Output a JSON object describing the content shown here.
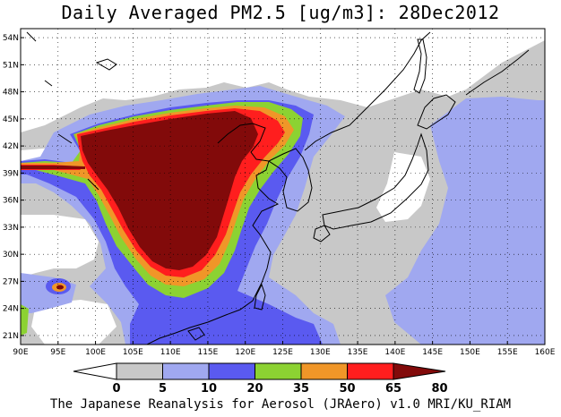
{
  "title": "Daily Averaged PM2.5 [ug/m3]: 28Dec2012",
  "credit": "The Japanese Reanalysis for Aerosol (JRAero) v1.0 MRI/KU_RIAM",
  "map": {
    "lon_range": [
      90,
      160
    ],
    "lat_range": [
      20,
      55
    ],
    "lon_ticks": [
      "90E",
      "95E",
      "100E",
      "105E",
      "110E",
      "115E",
      "120E",
      "125E",
      "130E",
      "135E",
      "140E",
      "145E",
      "150E",
      "155E",
      "160E"
    ],
    "lat_ticks": [
      "21N",
      "24N",
      "27N",
      "30N",
      "33N",
      "36N",
      "39N",
      "42N",
      "45N",
      "48N",
      "51N",
      "54N"
    ],
    "grid": true,
    "colors": {
      "0-5": "#ffffff",
      "5-10": "#c8c8c8",
      "10-20": "#a0a8f0",
      "20-35": "#5a5af0",
      "35-50": "#8cd232",
      "50-65": "#f09628",
      "65-80": "#ff1e1e",
      "80+": "#820a0a"
    }
  },
  "colorbar": {
    "labels": [
      "0",
      "5",
      "10",
      "20",
      "35",
      "50",
      "65",
      "80"
    ],
    "colors": [
      "#ffffff",
      "#c8c8c8",
      "#a0a8f0",
      "#5a5af0",
      "#8cd232",
      "#f09628",
      "#ff1e1e",
      "#820a0a"
    ]
  }
}
